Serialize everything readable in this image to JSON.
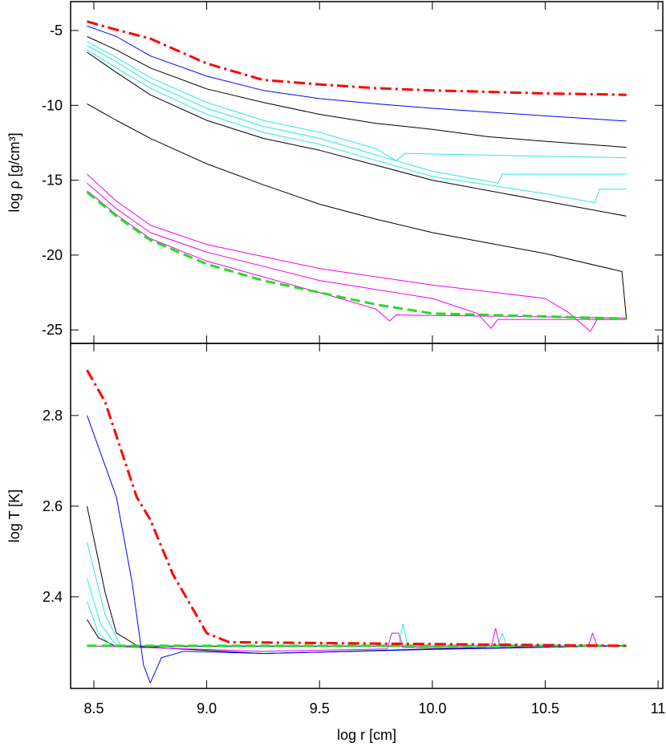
{
  "chart_data": [
    {
      "type": "line",
      "ylabel": "log ρ [g/cm³]",
      "xlim": [
        8.397,
        11.021
      ],
      "ylim": [
        -25.9,
        -3.07
      ],
      "yticks": [
        -5,
        -10,
        -15,
        -20,
        -25
      ],
      "series": [
        {
          "color": "#000000",
          "width": 1,
          "dash": "solid",
          "x": [
            8.47,
            8.6,
            8.75,
            9.0,
            9.25,
            9.5,
            9.75,
            10.0,
            10.25,
            10.5,
            10.86
          ],
          "values": [
            -5.4,
            -6.3,
            -7.5,
            -8.9,
            -9.8,
            -10.6,
            -11.2,
            -11.6,
            -12.1,
            -12.4,
            -12.8
          ]
        },
        {
          "color": "#000000",
          "width": 1,
          "dash": "solid",
          "x": [
            8.47,
            8.6,
            8.75,
            9.0,
            9.25,
            9.5,
            10.0,
            10.5,
            10.86
          ],
          "values": [
            -6.45,
            -7.8,
            -9.3,
            -11.0,
            -12.2,
            -13.0,
            -15.0,
            -16.4,
            -17.4
          ]
        },
        {
          "color": "#000000",
          "width": 1,
          "dash": "solid",
          "x": [
            8.47,
            8.6,
            8.75,
            9.0,
            9.25,
            9.5,
            9.75,
            10.0,
            10.25,
            10.5,
            10.84,
            10.86
          ],
          "values": [
            -9.9,
            -11.0,
            -12.2,
            -13.9,
            -15.3,
            -16.6,
            -17.6,
            -18.5,
            -19.2,
            -19.9,
            -21.1,
            -24.3
          ]
        },
        {
          "color": "#2ee6e6",
          "width": 1,
          "dash": "solid",
          "x": [
            8.47,
            8.6,
            8.75,
            9.0,
            9.25,
            9.5,
            9.75,
            9.84,
            9.88,
            10.0,
            10.5,
            10.86
          ],
          "values": [
            -5.75,
            -6.8,
            -8.15,
            -9.8,
            -11.0,
            -11.8,
            -12.9,
            -13.7,
            -13.2,
            -13.25,
            -13.4,
            -13.5
          ]
        },
        {
          "color": "#2ee6e6",
          "width": 1,
          "dash": "solid",
          "x": [
            8.47,
            8.6,
            8.75,
            9.0,
            9.25,
            9.5,
            10.0,
            10.29,
            10.31,
            10.5,
            10.86
          ],
          "values": [
            -6.0,
            -7.1,
            -8.5,
            -10.2,
            -11.4,
            -12.2,
            -14.4,
            -15.2,
            -14.6,
            -14.6,
            -14.6
          ]
        },
        {
          "color": "#2ee6e6",
          "width": 1,
          "dash": "solid",
          "x": [
            8.47,
            8.6,
            8.75,
            9.0,
            9.25,
            9.5,
            10.0,
            10.5,
            10.72,
            10.74,
            10.86
          ],
          "values": [
            -6.3,
            -7.5,
            -8.85,
            -10.6,
            -11.8,
            -12.6,
            -14.75,
            -15.9,
            -16.5,
            -15.6,
            -15.6
          ]
        },
        {
          "color": "#ee00ee",
          "width": 1,
          "dash": "solid",
          "x": [
            8.47,
            8.6,
            8.75,
            9.0,
            9.5,
            10.0,
            10.5,
            10.6,
            10.7,
            10.73,
            10.86
          ],
          "values": [
            -14.6,
            -16.4,
            -18.0,
            -19.3,
            -20.9,
            -22.0,
            -22.9,
            -23.8,
            -25.1,
            -24.3,
            -24.3
          ]
        },
        {
          "color": "#ee00ee",
          "width": 1,
          "dash": "solid",
          "x": [
            8.47,
            8.6,
            8.75,
            9.0,
            9.5,
            10.0,
            10.2,
            10.26,
            10.29,
            10.86
          ],
          "values": [
            -15.2,
            -16.9,
            -18.5,
            -19.8,
            -21.7,
            -22.9,
            -23.9,
            -24.9,
            -24.3,
            -24.3
          ]
        },
        {
          "color": "#ee00ee",
          "width": 1,
          "dash": "solid",
          "x": [
            8.47,
            8.6,
            8.75,
            9.0,
            9.5,
            9.75,
            9.81,
            9.84,
            10.86
          ],
          "values": [
            -15.7,
            -17.3,
            -18.9,
            -20.4,
            -22.5,
            -23.6,
            -24.4,
            -24.0,
            -24.2
          ]
        },
        {
          "color": "#0000ff",
          "width": 1,
          "dash": "solid",
          "x": [
            8.47,
            8.6,
            8.75,
            9.0,
            9.25,
            9.5,
            9.75,
            10.0,
            10.25,
            10.5,
            10.86
          ],
          "values": [
            -4.7,
            -5.4,
            -6.7,
            -8.05,
            -9.0,
            -9.55,
            -9.9,
            -10.2,
            -10.45,
            -10.7,
            -11.05
          ]
        },
        {
          "color": "#22dd22",
          "width": 3,
          "dash": "dash",
          "x": [
            8.47,
            8.6,
            8.75,
            9.0,
            9.25,
            9.5,
            9.75,
            10.0,
            10.5,
            10.86
          ],
          "values": [
            -15.8,
            -17.4,
            -19.0,
            -20.6,
            -21.7,
            -22.5,
            -23.3,
            -23.9,
            -24.1,
            -24.25
          ]
        },
        {
          "color": "#ff0000",
          "width": 3,
          "dash": "dashdot",
          "x": [
            8.47,
            8.6,
            8.75,
            9.0,
            9.25,
            9.5,
            9.75,
            10.0,
            10.25,
            10.5,
            10.86
          ],
          "values": [
            -4.4,
            -4.95,
            -5.54,
            -7.2,
            -8.3,
            -8.6,
            -8.85,
            -9.0,
            -9.1,
            -9.2,
            -9.3
          ]
        }
      ]
    },
    {
      "type": "line",
      "ylabel": "log T [K]",
      "xlabel": "log r [cm]",
      "xlim": [
        8.397,
        11.021
      ],
      "ylim": [
        2.198,
        2.959
      ],
      "xticks": [
        8.5,
        {
          "value": 9,
          "label": "9.0"
        },
        9.5,
        {
          "value": 10,
          "label": "10.0"
        },
        10.5,
        11
      ],
      "yticks": [
        2.4,
        2.6,
        2.8
      ],
      "series": [
        {
          "color": "#000000",
          "width": 1,
          "dash": "solid",
          "x": [
            8.47,
            8.55,
            8.6,
            8.7,
            9.25,
            10.0,
            10.86
          ],
          "values": [
            2.6,
            2.41,
            2.32,
            2.29,
            2.275,
            2.285,
            2.292
          ]
        },
        {
          "color": "#000000",
          "width": 1,
          "dash": "solid",
          "x": [
            8.47,
            8.52,
            8.6,
            10.86
          ],
          "values": [
            2.35,
            2.31,
            2.29,
            2.292
          ]
        },
        {
          "color": "#2ee6e6",
          "width": 1,
          "dash": "solid",
          "x": [
            8.47,
            8.55,
            8.62,
            9.85,
            9.87,
            9.89,
            10.29,
            10.31,
            10.33,
            10.86
          ],
          "values": [
            2.52,
            2.36,
            2.292,
            2.292,
            2.34,
            2.292,
            2.292,
            2.32,
            2.292,
            2.292
          ]
        },
        {
          "color": "#2ee6e6",
          "width": 1,
          "dash": "solid",
          "x": [
            8.47,
            8.53,
            8.6,
            10.86
          ],
          "values": [
            2.44,
            2.34,
            2.292,
            2.292
          ]
        },
        {
          "color": "#2ee6e6",
          "width": 1,
          "dash": "solid",
          "x": [
            8.47,
            8.52,
            8.58,
            10.86
          ],
          "values": [
            2.39,
            2.32,
            2.292,
            2.292
          ]
        },
        {
          "color": "#ee00ee",
          "width": 1,
          "dash": "solid",
          "x": [
            8.47,
            8.6,
            9.25,
            9.8,
            9.82,
            9.85,
            9.87,
            10.26,
            10.28,
            10.3,
            10.69,
            10.71,
            10.73,
            10.86
          ],
          "values": [
            2.292,
            2.29,
            2.28,
            2.285,
            2.32,
            2.32,
            2.288,
            2.288,
            2.33,
            2.29,
            2.29,
            2.32,
            2.292,
            2.292
          ]
        },
        {
          "color": "#0000ff",
          "width": 1,
          "dash": "solid",
          "x": [
            8.47,
            8.6,
            8.67,
            8.72,
            8.75,
            8.8,
            8.9,
            9.25,
            10.0,
            10.86
          ],
          "values": [
            2.8,
            2.62,
            2.43,
            2.25,
            2.21,
            2.266,
            2.28,
            2.275,
            2.284,
            2.292
          ]
        },
        {
          "color": "#22dd22",
          "width": 3,
          "dash": "dash",
          "x": [
            8.47,
            10.86
          ],
          "values": [
            2.292,
            2.292
          ]
        },
        {
          "color": "#ff0000",
          "width": 3,
          "dash": "dashdot",
          "x": [
            8.47,
            8.55,
            8.69,
            8.75,
            8.85,
            9.0,
            9.1,
            10.86
          ],
          "values": [
            2.9,
            2.83,
            2.62,
            2.57,
            2.45,
            2.32,
            2.3,
            2.292
          ]
        }
      ]
    }
  ]
}
